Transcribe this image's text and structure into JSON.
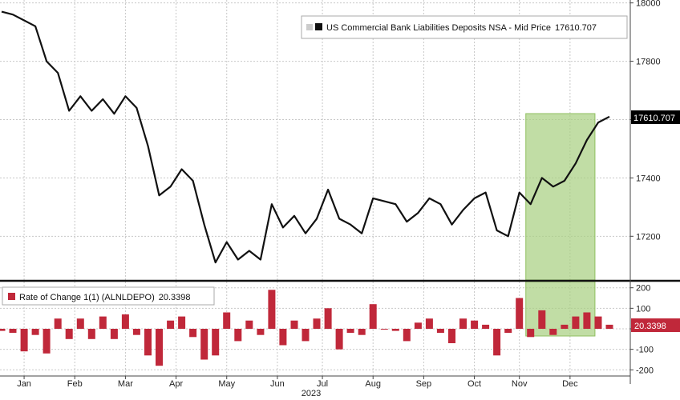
{
  "chart_data": [
    {
      "type": "line",
      "legend": "US Commercial Bank Liabilities Deposits NSA - Mid Price",
      "last_value": "17610.707",
      "ylim": [
        17050,
        18010
      ],
      "y_ticks": [
        "18000",
        "17800",
        "17600",
        "17400",
        "17200"
      ],
      "y_tick_values": [
        18000,
        17800,
        17600,
        17400,
        17200
      ],
      "highlight_range": [
        47,
        52
      ],
      "series": [
        {
          "values": [
            17970,
            17960,
            17940,
            17920,
            17800,
            17760,
            17630,
            17680,
            17630,
            17670,
            17620,
            17680,
            17640,
            17510,
            17340,
            17370,
            17430,
            17390,
            17240,
            17110,
            17180,
            17120,
            17150,
            17120,
            17310,
            17230,
            17270,
            17210,
            17260,
            17360,
            17260,
            17240,
            17210,
            17330,
            17320,
            17310,
            17250,
            17280,
            17330,
            17310,
            17240,
            17290,
            17330,
            17350,
            17220,
            17200,
            17350,
            17310,
            17400,
            17370,
            17390,
            17450,
            17530,
            17590,
            17610
          ]
        }
      ]
    },
    {
      "type": "bar",
      "legend": "Rate of Change 1(1) (ALNLDEPO)",
      "last_value": "20.3398",
      "ylim": [
        -230,
        230
      ],
      "y_ticks": [
        "200",
        "100",
        "0",
        "-100",
        "-200"
      ],
      "y_tick_values": [
        200,
        100,
        0,
        -100,
        -200
      ],
      "values": [
        -10,
        -20,
        -110,
        -30,
        -120,
        50,
        -50,
        50,
        -50,
        60,
        -50,
        70,
        -30,
        -130,
        -180,
        40,
        60,
        -40,
        -150,
        -130,
        80,
        -60,
        40,
        -30,
        190,
        -80,
        40,
        -60,
        50,
        100,
        -100,
        -20,
        -30,
        120,
        0,
        -10,
        -60,
        30,
        50,
        -20,
        -70,
        50,
        40,
        20,
        -130,
        -20,
        150,
        -40,
        90,
        -30,
        20,
        60,
        80,
        60,
        20
      ],
      "x_labels": [
        "Jan",
        "Feb",
        "Mar",
        "Apr",
        "May",
        "Jun",
        "Jul",
        "Aug",
        "Sep",
        "Oct",
        "Nov",
        "Dec"
      ],
      "x_label_positions": [
        2,
        6.5,
        11,
        15.5,
        20,
        24.5,
        28.5,
        33,
        37.5,
        42,
        46,
        50.5
      ],
      "year_label": "2023"
    }
  ],
  "colors": {
    "line": "#111111",
    "bar": "#c0283a",
    "highlight_fill": "#a6cf7f",
    "grid": "#c8c8c8"
  }
}
